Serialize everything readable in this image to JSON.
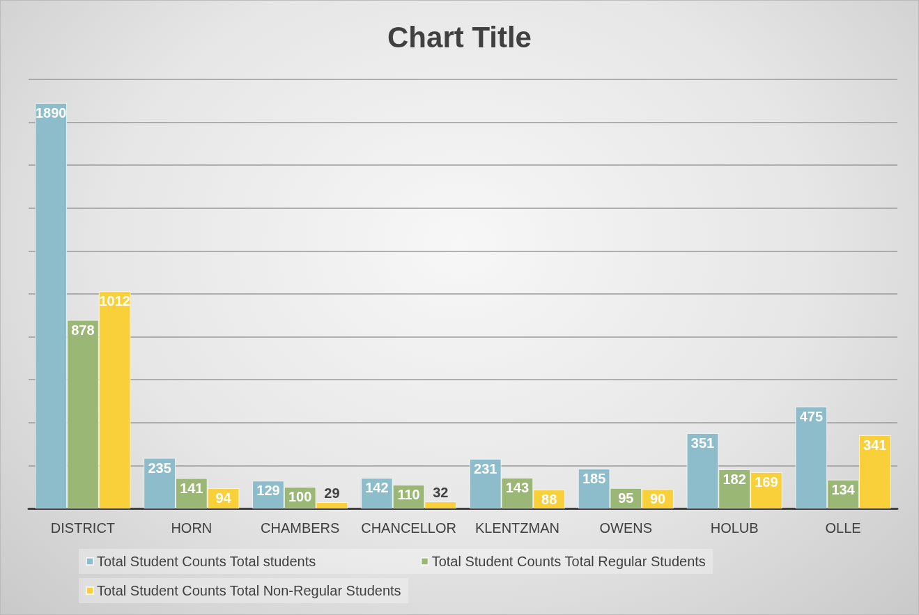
{
  "chart_data": {
    "type": "bar",
    "title": "Chart Title",
    "categories": [
      "DISTRICT",
      "HORN",
      "CHAMBERS",
      "CHANCELLOR",
      "KLENTZMAN",
      "OWENS",
      "HOLUB",
      "OLLE"
    ],
    "series": [
      {
        "name": "Total Student Counts Total students",
        "color": "#8dbccb",
        "values": [
          1890,
          235,
          129,
          142,
          231,
          185,
          351,
          475
        ]
      },
      {
        "name": "Total Student Counts Total Regular Students",
        "color": "#9bb776",
        "values": [
          878,
          141,
          100,
          110,
          143,
          95,
          182,
          134
        ]
      },
      {
        "name": "Total Student Counts Total Non-Regular Students",
        "color": "#f9cf3a",
        "values": [
          1012,
          94,
          29,
          32,
          88,
          90,
          169,
          341
        ]
      }
    ],
    "ylim": [
      0,
      2000
    ],
    "yticks": [
      {
        "value": 0,
        "label": null
      },
      {
        "value": 200,
        "label": null
      },
      {
        "value": 400,
        "label": null
      },
      {
        "value": 600,
        "label": null
      },
      {
        "value": 800,
        "label": null
      },
      {
        "value": 1000,
        "label": null
      },
      {
        "value": 1200,
        "label": null
      },
      {
        "value": 1400,
        "label": null
      },
      {
        "value": 1600,
        "label": null
      },
      {
        "value": 1800,
        "label": null
      },
      {
        "value": 2000,
        "label": null
      }
    ],
    "tick_labels": "x",
    "grid": "y",
    "legend": "bottom",
    "data_labels": true
  }
}
